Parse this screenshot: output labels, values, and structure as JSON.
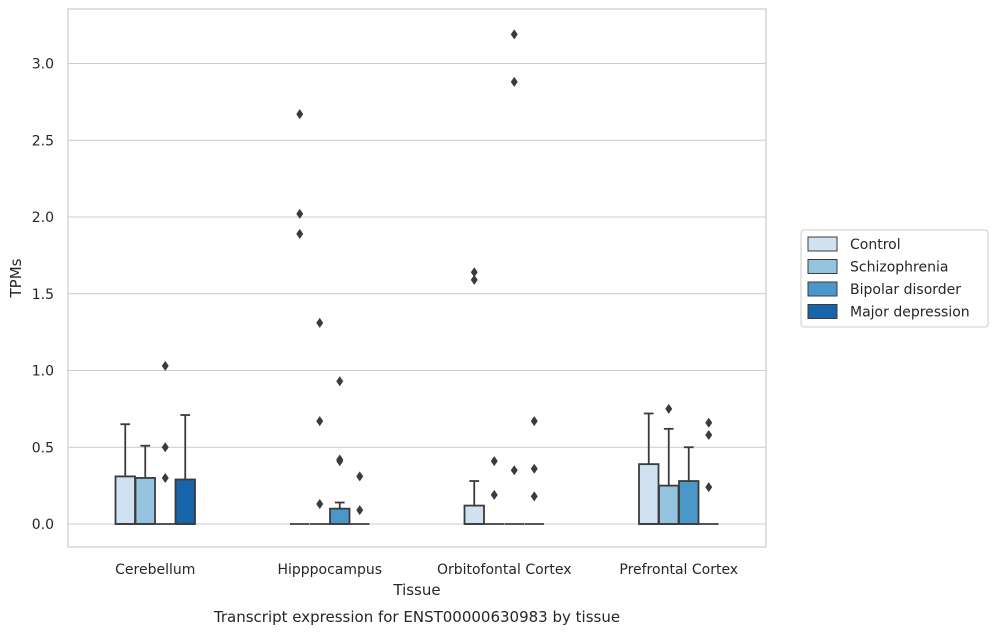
{
  "chart_data": {
    "type": "box",
    "title": "Transcript expression for ENST00000630983 by tissue",
    "xlabel": "Tissue",
    "ylabel": "TPMs",
    "categories": [
      "Cerebellum",
      "Hipppocampus",
      "Orbitofontal Cortex",
      "Prefrontal Cortex"
    ],
    "ylim": [
      -0.16,
      3.36
    ],
    "yticks": [
      "0.0",
      "0.5",
      "1.0",
      "1.5",
      "2.0",
      "2.5",
      "3.0"
    ],
    "grid": "horizontal",
    "legend_position": "center-right",
    "colors": {
      "Control": "#d0e1f2",
      "Schizophrenia": "#94c4df",
      "Bipolar disorder": "#4a98c9",
      "Major depression": "#1764ab",
      "line": "#3b3b3b",
      "grid": "#cccccc"
    },
    "series": [
      {
        "name": "Control",
        "boxes": [
          {
            "q1": 0.0,
            "median": 0.0,
            "q3": 0.31,
            "whisker_low": 0.0,
            "whisker_high": 0.65,
            "outliers": []
          },
          {
            "q1": 0.0,
            "median": 0.0,
            "q3": 0.0,
            "whisker_low": 0.0,
            "whisker_high": 0.0,
            "outliers": [
              2.67,
              2.02,
              1.89
            ]
          },
          {
            "q1": 0.0,
            "median": 0.0,
            "q3": 0.12,
            "whisker_low": 0.0,
            "whisker_high": 0.28,
            "outliers": [
              1.64,
              1.59
            ]
          },
          {
            "q1": 0.0,
            "median": 0.0,
            "q3": 0.39,
            "whisker_low": 0.0,
            "whisker_high": 0.72,
            "outliers": []
          }
        ]
      },
      {
        "name": "Schizophrenia",
        "boxes": [
          {
            "q1": 0.0,
            "median": 0.0,
            "q3": 0.3,
            "whisker_low": 0.0,
            "whisker_high": 0.51,
            "outliers": []
          },
          {
            "q1": 0.0,
            "median": 0.0,
            "q3": 0.0,
            "whisker_low": 0.0,
            "whisker_high": 0.0,
            "outliers": [
              1.31,
              0.67,
              0.13
            ]
          },
          {
            "q1": 0.0,
            "median": 0.0,
            "q3": 0.0,
            "whisker_low": 0.0,
            "whisker_high": 0.0,
            "outliers": [
              0.41,
              0.19
            ]
          },
          {
            "q1": 0.0,
            "median": 0.0,
            "q3": 0.25,
            "whisker_low": 0.0,
            "whisker_high": 0.62,
            "outliers": [
              0.75
            ]
          }
        ]
      },
      {
        "name": "Bipolar disorder",
        "boxes": [
          {
            "q1": 0.0,
            "median": 0.0,
            "q3": 0.0,
            "whisker_low": 0.0,
            "whisker_high": 0.0,
            "outliers": [
              1.03,
              0.5,
              0.3
            ]
          },
          {
            "q1": 0.0,
            "median": 0.0,
            "q3": 0.1,
            "whisker_low": 0.0,
            "whisker_high": 0.14,
            "outliers": [
              0.93,
              0.42,
              0.41
            ]
          },
          {
            "q1": 0.0,
            "median": 0.0,
            "q3": 0.0,
            "whisker_low": 0.0,
            "whisker_high": 0.0,
            "outliers": [
              3.19,
              2.88,
              0.35
            ]
          },
          {
            "q1": 0.0,
            "median": 0.0,
            "q3": 0.28,
            "whisker_low": 0.0,
            "whisker_high": 0.5,
            "outliers": []
          }
        ]
      },
      {
        "name": "Major depression",
        "boxes": [
          {
            "q1": 0.0,
            "median": 0.0,
            "q3": 0.29,
            "whisker_low": 0.0,
            "whisker_high": 0.71,
            "outliers": []
          },
          {
            "q1": 0.0,
            "median": 0.0,
            "q3": 0.0,
            "whisker_low": 0.0,
            "whisker_high": 0.0,
            "outliers": [
              0.31,
              0.09
            ]
          },
          {
            "q1": 0.0,
            "median": 0.0,
            "q3": 0.0,
            "whisker_low": 0.0,
            "whisker_high": 0.0,
            "outliers": [
              0.67,
              0.36,
              0.18
            ]
          },
          {
            "q1": 0.0,
            "median": 0.0,
            "q3": 0.0,
            "whisker_low": 0.0,
            "whisker_high": 0.0,
            "outliers": [
              0.66,
              0.58,
              0.24
            ]
          }
        ]
      }
    ]
  }
}
